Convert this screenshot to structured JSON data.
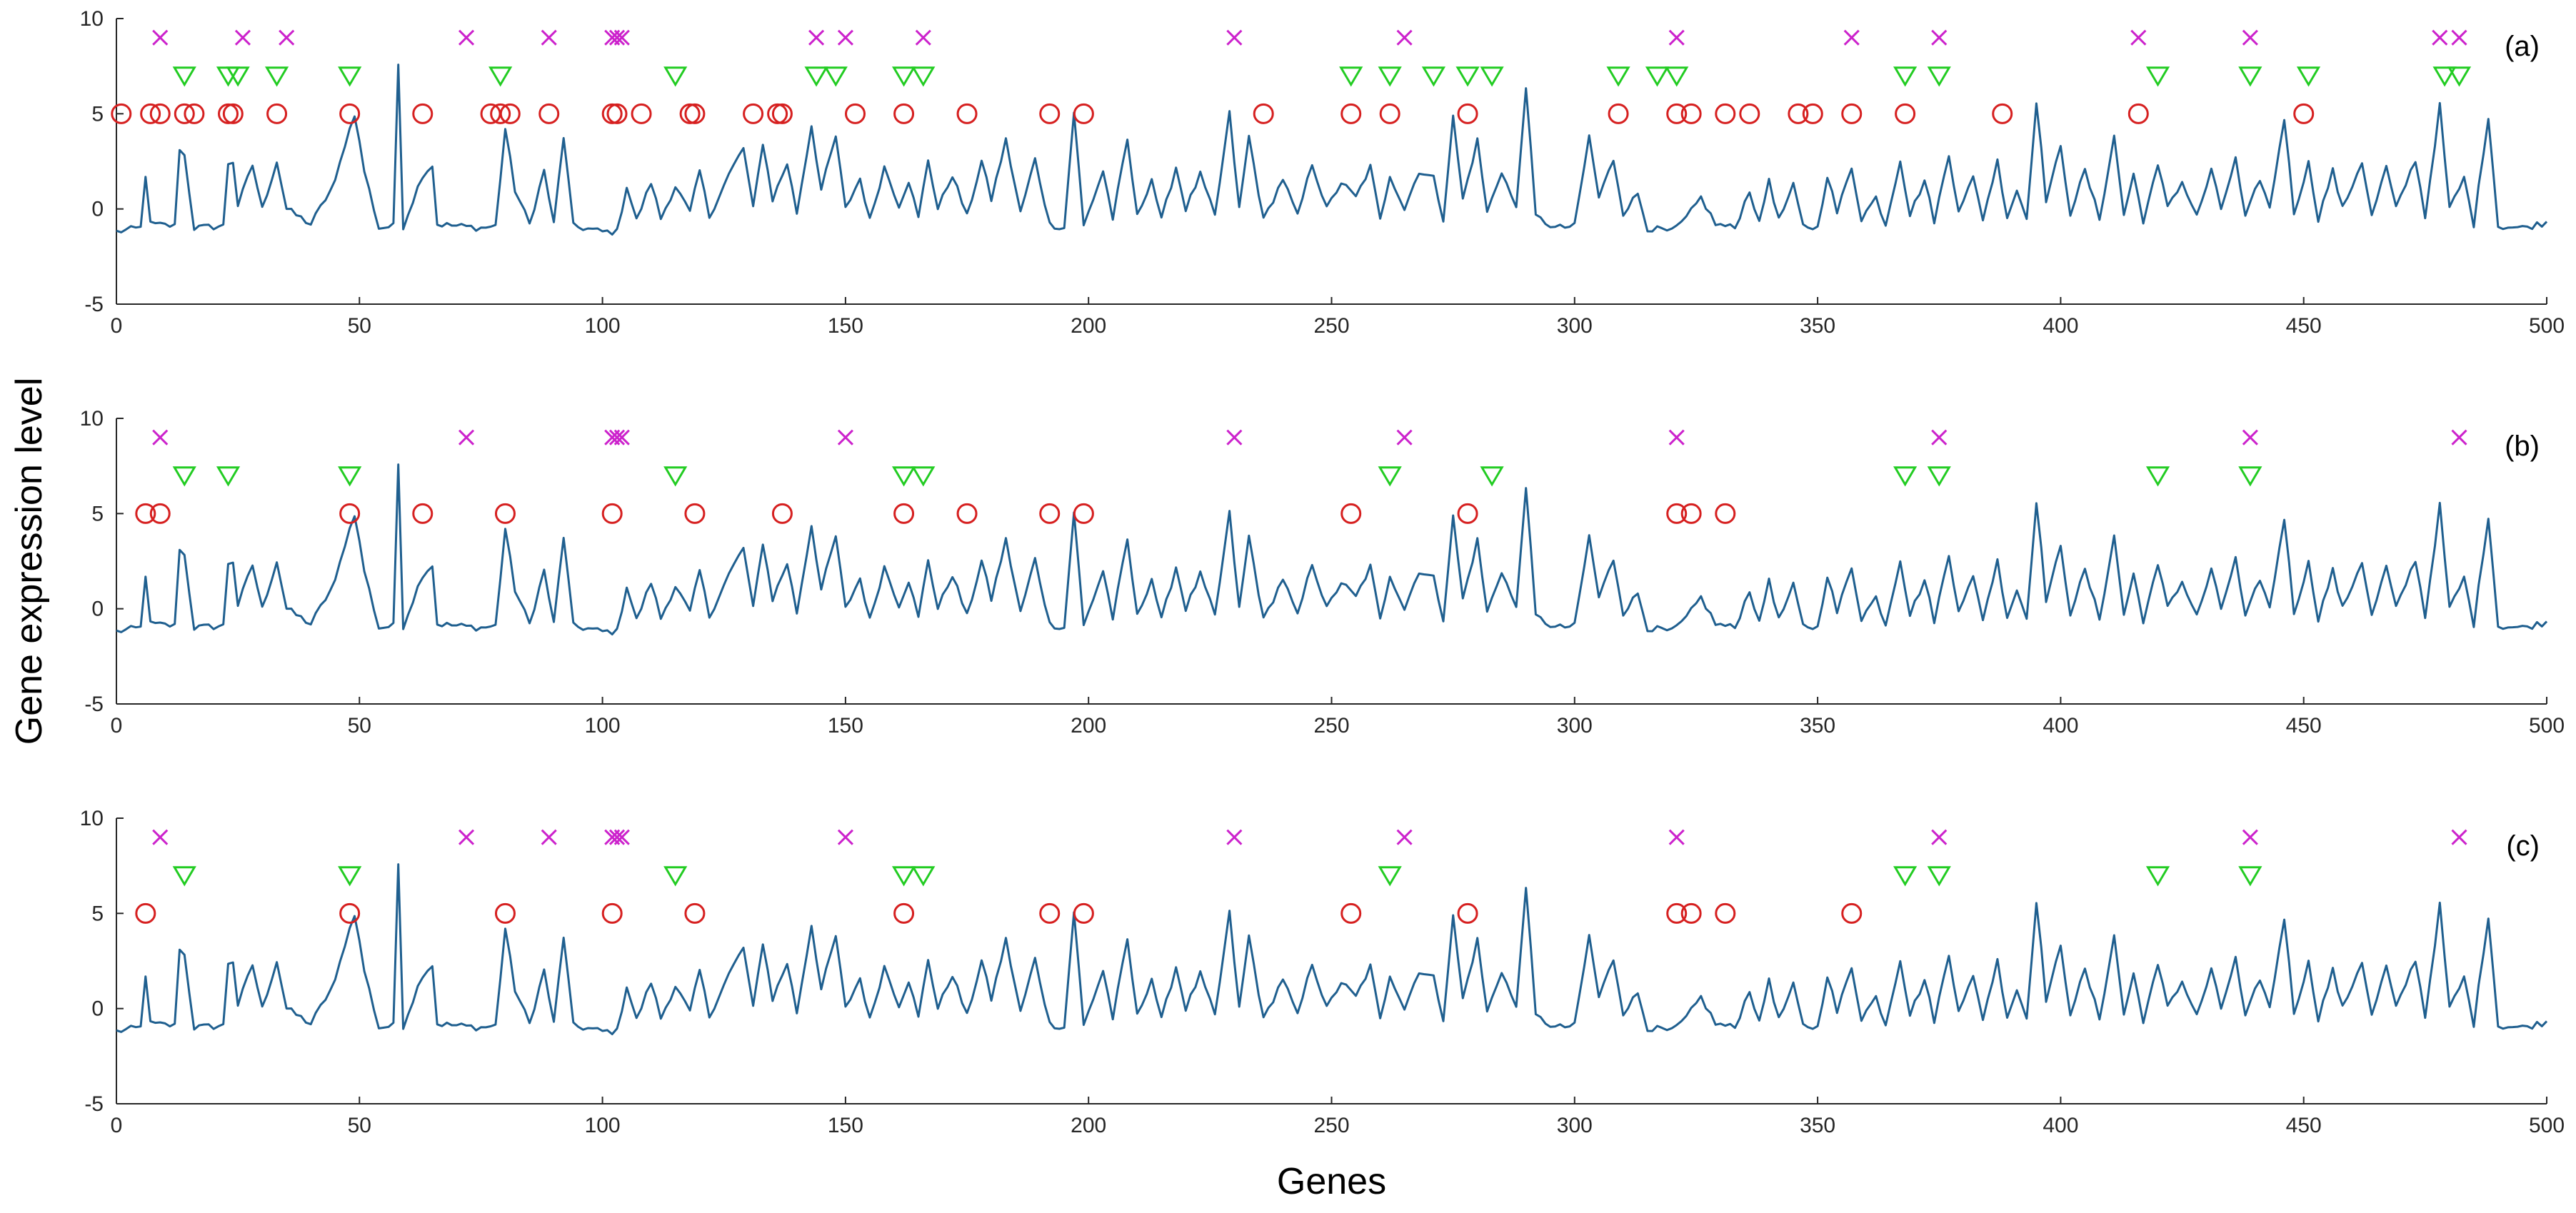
{
  "chart_data": [
    {
      "type": "line",
      "panel_label": "(a)",
      "xlabel": "",
      "ylabel": "",
      "xlim": [
        0,
        500
      ],
      "ylim": [
        -5,
        10
      ],
      "xticks": [
        0,
        50,
        100,
        150,
        200,
        250,
        300,
        350,
        400,
        450,
        500
      ],
      "yticks": [
        -5,
        0,
        5,
        10
      ],
      "grid": false,
      "series_profile": [
        [
          0,
          -1.2
        ],
        [
          5,
          -1.0
        ],
        [
          6,
          1.8
        ],
        [
          7,
          -0.8
        ],
        [
          12,
          -0.9
        ],
        [
          13,
          3.2
        ],
        [
          14,
          2.8
        ],
        [
          16,
          -1.0
        ],
        [
          22,
          -0.9
        ],
        [
          23,
          2.4
        ],
        [
          24,
          2.5
        ],
        [
          25,
          0.2
        ],
        [
          28,
          2.3
        ],
        [
          30,
          0.0
        ],
        [
          33,
          2.5
        ],
        [
          35,
          0.0
        ],
        [
          40,
          -0.8
        ],
        [
          45,
          1.4
        ],
        [
          47,
          3.4
        ],
        [
          49,
          5.0
        ],
        [
          51,
          2.0
        ],
        [
          54,
          -1.0
        ],
        [
          57,
          -0.9
        ],
        [
          58,
          7.6
        ],
        [
          59,
          -0.9
        ],
        [
          63,
          1.8
        ],
        [
          65,
          2.3
        ],
        [
          66,
          -0.8
        ],
        [
          75,
          -1.0
        ],
        [
          78,
          -0.9
        ],
        [
          80,
          4.2
        ],
        [
          82,
          1.0
        ],
        [
          85,
          -0.8
        ],
        [
          88,
          2.0
        ],
        [
          90,
          -0.8
        ],
        [
          92,
          3.8
        ],
        [
          94,
          -0.9
        ],
        [
          100,
          -1.2
        ],
        [
          103,
          -1.2
        ],
        [
          105,
          1.2
        ],
        [
          107,
          -0.6
        ],
        [
          110,
          1.4
        ],
        [
          112,
          -0.5
        ],
        [
          115,
          1.2
        ],
        [
          118,
          -0.2
        ],
        [
          120,
          2.0
        ],
        [
          122,
          -0.4
        ],
        [
          126,
          1.8
        ],
        [
          129,
          3.2
        ],
        [
          131,
          0.0
        ],
        [
          133,
          3.5
        ],
        [
          135,
          0.5
        ],
        [
          138,
          2.4
        ],
        [
          140,
          -0.2
        ],
        [
          143,
          4.4
        ],
        [
          145,
          1.0
        ],
        [
          148,
          3.8
        ],
        [
          150,
          0.0
        ],
        [
          153,
          1.6
        ],
        [
          155,
          -0.6
        ],
        [
          158,
          2.2
        ],
        [
          161,
          0.2
        ],
        [
          163,
          1.5
        ],
        [
          165,
          -0.5
        ],
        [
          167,
          2.6
        ],
        [
          169,
          0.0
        ],
        [
          172,
          1.8
        ],
        [
          175,
          -0.4
        ],
        [
          178,
          2.5
        ],
        [
          180,
          0.5
        ],
        [
          183,
          3.6
        ],
        [
          186,
          -0.2
        ],
        [
          189,
          2.6
        ],
        [
          192,
          -0.8
        ],
        [
          195,
          -1.0
        ],
        [
          197,
          5.1
        ],
        [
          199,
          -0.9
        ],
        [
          203,
          2.0
        ],
        [
          205,
          -0.5
        ],
        [
          208,
          3.6
        ],
        [
          210,
          -0.4
        ],
        [
          213,
          1.6
        ],
        [
          215,
          -0.6
        ],
        [
          218,
          2.2
        ],
        [
          220,
          0.0
        ],
        [
          223,
          1.8
        ],
        [
          226,
          -0.4
        ],
        [
          229,
          5.0
        ],
        [
          231,
          0.0
        ],
        [
          233,
          3.8
        ],
        [
          236,
          -0.6
        ],
        [
          240,
          1.6
        ],
        [
          243,
          -0.4
        ],
        [
          246,
          2.4
        ],
        [
          249,
          0.0
        ],
        [
          252,
          1.4
        ],
        [
          255,
          0.6
        ],
        [
          258,
          2.2
        ],
        [
          260,
          -0.6
        ],
        [
          262,
          1.8
        ],
        [
          265,
          0.0
        ],
        [
          268,
          2.0
        ],
        [
          271,
          1.6
        ],
        [
          273,
          -0.5
        ],
        [
          275,
          4.8
        ],
        [
          277,
          0.5
        ],
        [
          280,
          3.6
        ],
        [
          282,
          -0.2
        ],
        [
          285,
          2.0
        ],
        [
          288,
          0.0
        ],
        [
          290,
          6.5
        ],
        [
          292,
          -0.4
        ],
        [
          296,
          -1.0
        ],
        [
          300,
          -0.9
        ],
        [
          303,
          3.8
        ],
        [
          305,
          0.6
        ],
        [
          308,
          2.6
        ],
        [
          310,
          -0.2
        ],
        [
          313,
          0.8
        ],
        [
          315,
          -1.0
        ],
        [
          320,
          -1.2
        ],
        [
          323,
          -0.5
        ],
        [
          326,
          0.6
        ],
        [
          329,
          -0.8
        ],
        [
          333,
          -1.0
        ],
        [
          336,
          1.0
        ],
        [
          338,
          -0.8
        ],
        [
          340,
          1.6
        ],
        [
          342,
          -0.6
        ],
        [
          345,
          1.2
        ],
        [
          347,
          -0.9
        ],
        [
          350,
          -1.0
        ],
        [
          352,
          1.8
        ],
        [
          354,
          -0.2
        ],
        [
          357,
          2.2
        ],
        [
          359,
          -0.5
        ],
        [
          362,
          0.6
        ],
        [
          364,
          -0.8
        ],
        [
          367,
          2.6
        ],
        [
          369,
          -0.3
        ],
        [
          372,
          1.5
        ],
        [
          374,
          -0.6
        ],
        [
          377,
          2.8
        ],
        [
          379,
          0.0
        ],
        [
          382,
          1.6
        ],
        [
          384,
          -0.5
        ],
        [
          387,
          2.5
        ],
        [
          389,
          -0.4
        ],
        [
          391,
          1.0
        ],
        [
          393,
          -0.5
        ],
        [
          395,
          5.7
        ],
        [
          397,
          0.5
        ],
        [
          400,
          3.2
        ],
        [
          402,
          -0.2
        ],
        [
          405,
          2.0
        ],
        [
          408,
          -0.5
        ],
        [
          411,
          3.8
        ],
        [
          413,
          -0.3
        ],
        [
          415,
          1.8
        ],
        [
          417,
          -0.6
        ],
        [
          420,
          2.2
        ],
        [
          422,
          0.2
        ],
        [
          425,
          1.4
        ],
        [
          428,
          -0.4
        ],
        [
          431,
          2.0
        ],
        [
          433,
          0.0
        ],
        [
          436,
          2.6
        ],
        [
          438,
          -0.5
        ],
        [
          441,
          1.6
        ],
        [
          443,
          0.0
        ],
        [
          446,
          4.8
        ],
        [
          448,
          -0.2
        ],
        [
          451,
          2.4
        ],
        [
          453,
          -0.5
        ],
        [
          456,
          2.0
        ],
        [
          458,
          0.0
        ],
        [
          462,
          2.5
        ],
        [
          464,
          -0.4
        ],
        [
          467,
          2.2
        ],
        [
          469,
          0.0
        ],
        [
          473,
          2.6
        ],
        [
          475,
          -0.4
        ],
        [
          478,
          5.4
        ],
        [
          480,
          0.0
        ],
        [
          483,
          1.6
        ],
        [
          485,
          -0.8
        ],
        [
          488,
          4.9
        ],
        [
          490,
          -0.9
        ],
        [
          495,
          -1.0
        ],
        [
          500,
          -0.7
        ]
      ],
      "markers": {
        "circle_y": 5,
        "circle_x": [
          1,
          7,
          9,
          14,
          16,
          23,
          24,
          33,
          48,
          63,
          77,
          79,
          81,
          89,
          102,
          103,
          108,
          118,
          119,
          131,
          136,
          137,
          152,
          162,
          175,
          192,
          199,
          236,
          254,
          262,
          278,
          309,
          321,
          324,
          331,
          336,
          346,
          349,
          357,
          368,
          388,
          416,
          450
        ],
        "triangle_y": 7,
        "triangle_x": [
          14,
          23,
          25,
          33,
          48,
          79,
          115,
          144,
          148,
          162,
          166,
          254,
          262,
          271,
          278,
          283,
          309,
          317,
          321,
          368,
          375,
          420,
          439,
          451,
          479,
          482
        ],
        "cross_y": 9,
        "cross_x": [
          9,
          26,
          35,
          72,
          89,
          102,
          103,
          104,
          144,
          150,
          166,
          230,
          265,
          321,
          357,
          375,
          416,
          439,
          478,
          482
        ]
      }
    },
    {
      "type": "line",
      "panel_label": "(b)",
      "xlabel": "",
      "ylabel": "",
      "xlim": [
        0,
        500
      ],
      "ylim": [
        -5,
        10
      ],
      "xticks": [
        0,
        50,
        100,
        150,
        200,
        250,
        300,
        350,
        400,
        450,
        500
      ],
      "yticks": [
        -5,
        0,
        5,
        10
      ],
      "grid": false,
      "series_profile": "same as panel (a)",
      "markers": {
        "circle_y": 5,
        "circle_x": [
          6,
          9,
          48,
          63,
          80,
          102,
          119,
          137,
          162,
          175,
          192,
          199,
          254,
          278,
          321,
          324,
          331
        ],
        "triangle_y": 7,
        "triangle_x": [
          14,
          23,
          48,
          115,
          162,
          166,
          262,
          283,
          368,
          375,
          420,
          439
        ],
        "cross_y": 9,
        "cross_x": [
          9,
          72,
          102,
          103,
          104,
          150,
          230,
          265,
          321,
          375,
          439,
          482
        ]
      }
    },
    {
      "type": "line",
      "panel_label": "(c)",
      "xlabel": "",
      "ylabel": "",
      "xlim": [
        0,
        500
      ],
      "ylim": [
        -5,
        10
      ],
      "xticks": [
        0,
        50,
        100,
        150,
        200,
        250,
        300,
        350,
        400,
        450,
        500
      ],
      "yticks": [
        -5,
        0,
        5,
        10
      ],
      "grid": false,
      "series_profile": "same as panel (a)",
      "markers": {
        "circle_y": 5,
        "circle_x": [
          6,
          48,
          80,
          102,
          119,
          162,
          192,
          199,
          254,
          278,
          321,
          324,
          331,
          357
        ],
        "triangle_y": 7,
        "triangle_x": [
          14,
          48,
          115,
          162,
          166,
          262,
          368,
          375,
          420,
          439
        ],
        "cross_y": 9,
        "cross_x": [
          9,
          72,
          89,
          102,
          103,
          104,
          150,
          230,
          265,
          321,
          375,
          439,
          482
        ]
      }
    }
  ],
  "labels": {
    "shared_xlabel": "Genes",
    "shared_ylabel": "Gene expression level"
  },
  "colors": {
    "line": "#1f5f8f",
    "circle": "#d62020",
    "triangle": "#22cc22",
    "cross": "#cc22cc",
    "axis": "#262626"
  }
}
